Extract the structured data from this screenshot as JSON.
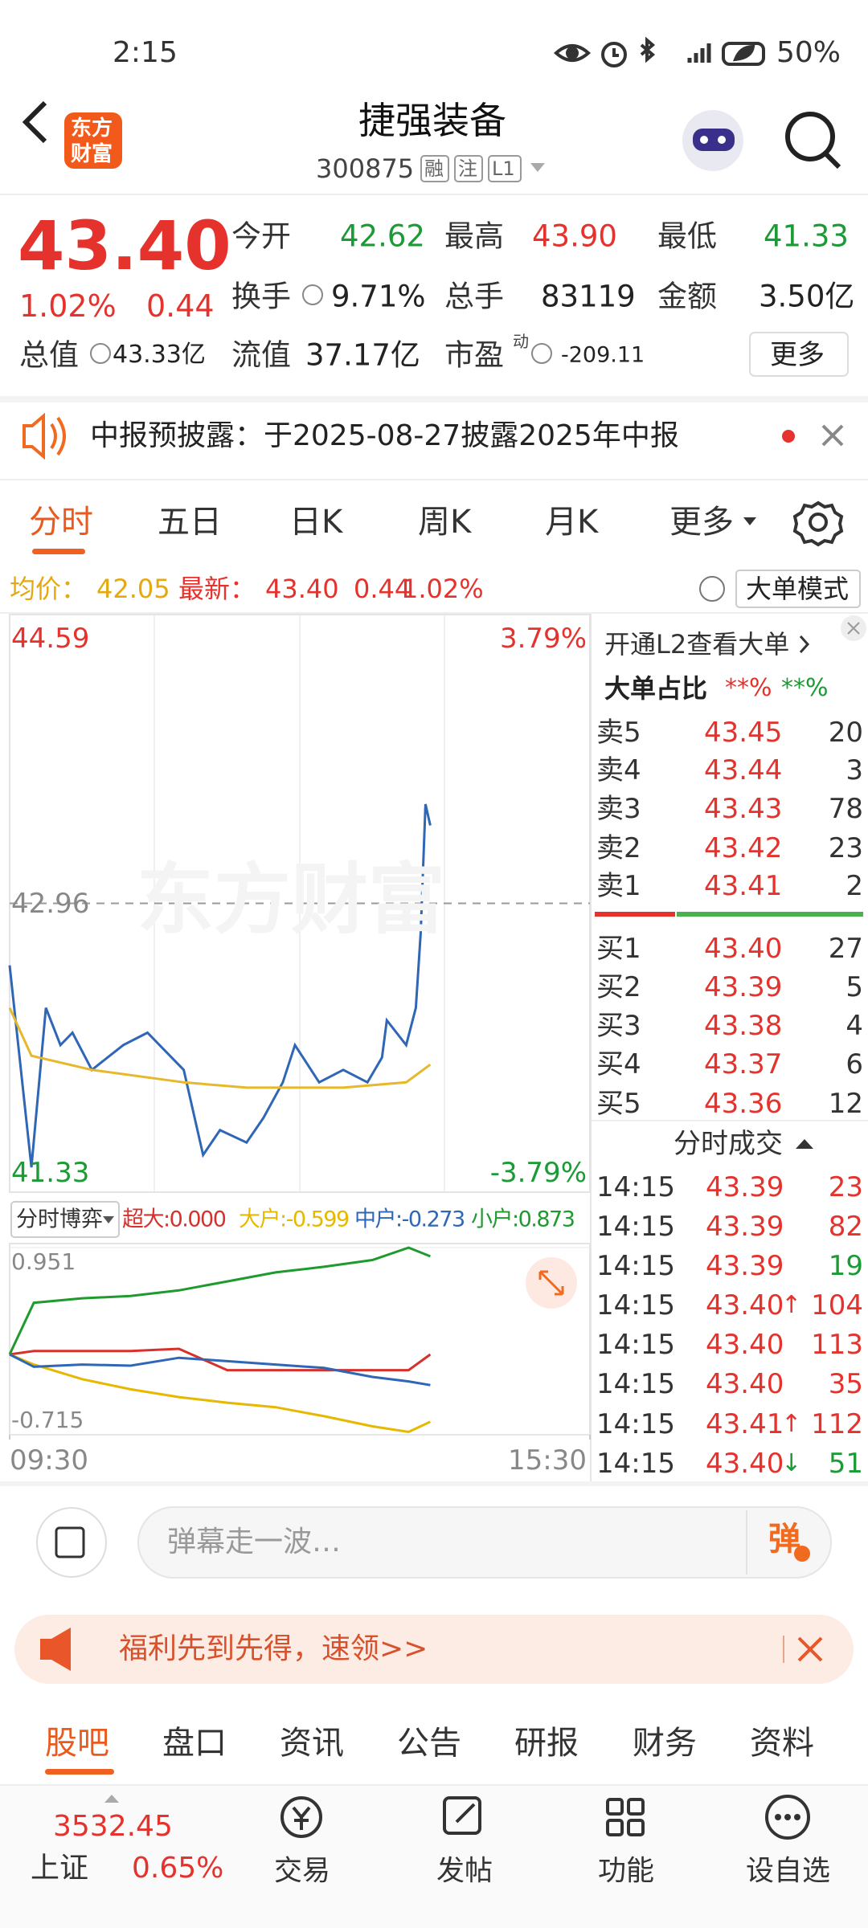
{
  "status_bar": {
    "time": "2:15",
    "battery": "50%"
  },
  "header": {
    "logo": [
      "东方",
      "财富"
    ],
    "title": "捷强装备",
    "code": "300875",
    "badges": [
      "融",
      "注",
      "L1"
    ]
  },
  "quote": {
    "price": "43.40",
    "change_pct": "1.02%",
    "change": "0.44",
    "fields": [
      {
        "label": "今开",
        "value": "42.62"
      },
      {
        "label": "最高",
        "value": "43.90"
      },
      {
        "label": "最低",
        "value": "41.33"
      },
      {
        "label": "换手",
        "value": "9.71%"
      },
      {
        "label": "总手",
        "value": "83119"
      },
      {
        "label": "金额",
        "value": "3.50亿"
      },
      {
        "label": "总值",
        "value": "43.33亿"
      },
      {
        "label": "流值",
        "value": "37.17亿"
      },
      {
        "label": "市盈",
        "sup": "动",
        "value": "-209.11"
      }
    ],
    "more": "更多"
  },
  "notice": "中报预披露：于2025-08-27披露2025年中报",
  "chart_tabs": [
    "分时",
    "五日",
    "日K",
    "周K",
    "月K",
    "更多"
  ],
  "info_bar": {
    "avg_label": "均价：",
    "avg": "42.05",
    "latest_label": "最新：",
    "latest": "43.40",
    "change": "0.44",
    "change_pct": "1.02%",
    "mode": "大单模式"
  },
  "chart_data": [
    {
      "type": "line",
      "watermark": "东方财富",
      "xlim": [
        0,
        240
      ],
      "ylim": [
        41.33,
        44.59
      ],
      "yticks": [
        41.33,
        42.96,
        44.59
      ],
      "y2lim": [
        -3.79,
        3.79
      ],
      "y2ticks": [
        {
          "value": -3.79,
          "label": "-3.79%"
        },
        {
          "value": 3.79,
          "label": "3.79%"
        }
      ],
      "series": [
        {
          "color": "#2f66b5",
          "x": [
            0,
            9,
            15,
            21,
            26,
            34,
            47,
            57,
            67,
            72,
            80,
            87,
            98,
            105,
            113,
            118,
            128,
            138,
            148,
            154,
            156,
            164,
            168,
            170,
            172,
            174
          ],
          "values": [
            42.61,
            41.47,
            42.37,
            42.16,
            42.23,
            42.02,
            42.16,
            42.23,
            42.09,
            42.02,
            41.54,
            41.68,
            41.61,
            41.75,
            41.95,
            42.16,
            41.95,
            42.02,
            41.95,
            42.09,
            42.3,
            42.16,
            42.37,
            42.79,
            43.52,
            43.4
          ]
        },
        {
          "color": "#e6b82a",
          "x": [
            0,
            9,
            34,
            72,
            98,
            138,
            164,
            174
          ],
          "values": [
            42.37,
            42.1,
            42.02,
            41.95,
            41.92,
            41.92,
            41.95,
            42.05
          ]
        }
      ]
    },
    {
      "type": "line",
      "selector": "分时博弈",
      "legend": [
        "超大:0.000",
        "大户:-0.599",
        "中户:-0.273",
        "小户:0.873"
      ],
      "xlim": [
        0,
        240
      ],
      "xticks": [
        {
          "value": 0,
          "label": "09:30"
        },
        {
          "value": 240,
          "label": "15:30"
        }
      ],
      "ylim": [
        -0.715,
        0.951
      ],
      "yticks": [
        -0.715,
        0.951
      ],
      "series": [
        {
          "color": "#d8312c",
          "x": [
            0,
            10,
            30,
            50,
            70,
            90,
            110,
            130,
            150,
            165,
            174
          ],
          "values": [
            0,
            0.03,
            0.03,
            0.03,
            0.05,
            -0.14,
            -0.14,
            -0.14,
            -0.14,
            -0.14,
            0.0
          ]
        },
        {
          "color": "#e6b800",
          "x": [
            0,
            10,
            30,
            50,
            70,
            90,
            110,
            130,
            150,
            165,
            174
          ],
          "values": [
            0,
            -0.09,
            -0.22,
            -0.31,
            -0.38,
            -0.43,
            -0.47,
            -0.55,
            -0.64,
            -0.69,
            -0.599
          ]
        },
        {
          "color": "#2f66b5",
          "x": [
            0,
            10,
            30,
            50,
            70,
            90,
            110,
            130,
            150,
            165,
            174
          ],
          "values": [
            0,
            -0.11,
            -0.09,
            -0.1,
            -0.03,
            -0.06,
            -0.09,
            -0.12,
            -0.2,
            -0.24,
            -0.273
          ]
        },
        {
          "color": "#1f9a2e",
          "x": [
            0,
            10,
            30,
            50,
            70,
            90,
            110,
            130,
            150,
            165,
            174
          ],
          "values": [
            0,
            0.46,
            0.5,
            0.52,
            0.57,
            0.65,
            0.73,
            0.78,
            0.84,
            0.95,
            0.873
          ]
        }
      ]
    }
  ],
  "order_panel": {
    "l2_link": "开通L2查看大单",
    "ratio_label": "大单占比",
    "ratio_buy": "**%",
    "ratio_sell": "**%",
    "asks": [
      [
        "卖5",
        "43.45",
        "20"
      ],
      [
        "卖4",
        "43.44",
        "3"
      ],
      [
        "卖3",
        "43.43",
        "78"
      ],
      [
        "卖2",
        "43.42",
        "23"
      ],
      [
        "卖1",
        "43.41",
        "2"
      ]
    ],
    "bids": [
      [
        "买1",
        "43.40",
        "27"
      ],
      [
        "买2",
        "43.39",
        "5"
      ],
      [
        "买3",
        "43.38",
        "4"
      ],
      [
        "买4",
        "43.37",
        "6"
      ],
      [
        "买5",
        "43.36",
        "12"
      ]
    ],
    "trades_title": "分时成交",
    "trades": [
      {
        "time": "14:15",
        "price": "43.39",
        "volume": "23",
        "color": "red"
      },
      {
        "time": "14:15",
        "price": "43.39",
        "volume": "82",
        "color": "red"
      },
      {
        "time": "14:15",
        "price": "43.39",
        "volume": "19",
        "color": "green"
      },
      {
        "time": "14:15",
        "price": "43.40",
        "arrow": "↑",
        "volume": "104",
        "color": "red"
      },
      {
        "time": "14:15",
        "price": "43.40",
        "volume": "113",
        "color": "red"
      },
      {
        "time": "14:15",
        "price": "43.40",
        "volume": "35",
        "color": "red"
      },
      {
        "time": "14:15",
        "price": "43.41",
        "arrow": "↑",
        "volume": "112",
        "color": "red"
      },
      {
        "time": "14:15",
        "price": "43.40",
        "arrow": "↓",
        "volume": "51",
        "color": "green"
      }
    ]
  },
  "comment": {
    "placeholder": "弹幕走一波…",
    "button": "弹"
  },
  "promo": "福利先到先得，速领>>",
  "tabs": [
    "股吧",
    "盘口",
    "资讯",
    "公告",
    "研报",
    "财务",
    "资料"
  ],
  "nav": {
    "index_value": "3532.45",
    "index_name": "上证",
    "index_change": "0.65%",
    "items": [
      "交易",
      "发帖",
      "功能",
      "设自选"
    ]
  }
}
